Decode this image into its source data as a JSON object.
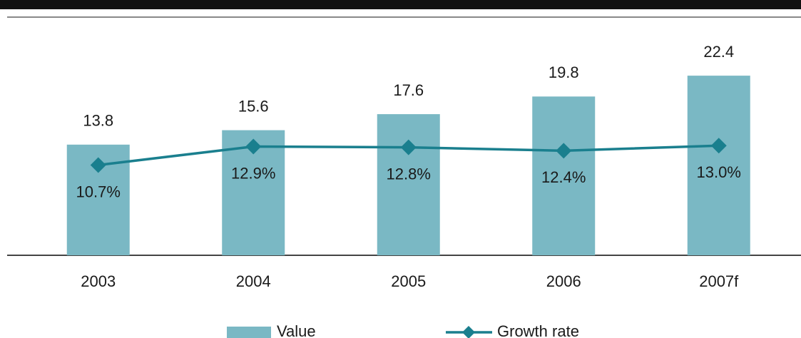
{
  "chart_data": {
    "type": "bar",
    "categories": [
      "2003",
      "2004",
      "2005",
      "2006",
      "2007f"
    ],
    "series": [
      {
        "name": "Value",
        "color": "#7ab8c4",
        "values": [
          13.8,
          15.6,
          17.6,
          19.8,
          22.4
        ]
      },
      {
        "name": "Growth rate",
        "type": "line",
        "axis": "y2",
        "color": "#1a7f8e",
        "values": [
          10.7,
          12.9,
          12.8,
          12.4,
          13.0
        ],
        "value_labels": [
          "10.7%",
          "12.9%",
          "12.8%",
          "12.4%",
          "13.0%"
        ]
      }
    ],
    "ylim": [
      0,
      26.5
    ],
    "y2lim": [
      0,
      25.2
    ],
    "legend": "bottom"
  }
}
